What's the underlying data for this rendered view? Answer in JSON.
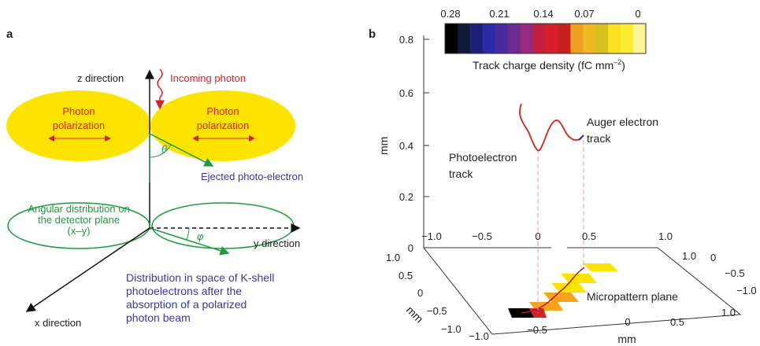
{
  "panel_a": {
    "letter": "a",
    "z_axis_label": "z direction",
    "incoming_label": "Incoming photon",
    "left_ellipse_lines": [
      "Photon",
      "polarization"
    ],
    "right_ellipse_lines": [
      "Photon",
      "polarization"
    ],
    "theta": "θ",
    "ejected_label": "Ejected photo-electron",
    "detector_lines": [
      "Angular distribution on",
      "the detector plane",
      "(x–y)"
    ],
    "phi": "φ",
    "y_axis_label": "y direction",
    "x_axis_label": "x direction",
    "caption_lines": [
      "Distribution in space of K-shell",
      "photoelectrons after the",
      "absorption of a polarized",
      "photon beam"
    ]
  },
  "panel_b": {
    "letter": "b",
    "colorbar": {
      "ticks": [
        "0.28",
        "0.21",
        "0.14",
        "0.07",
        "0"
      ],
      "colors": [
        "#000000",
        "#101838",
        "#1c2078",
        "#2a2aa8",
        "#4a2a9c",
        "#6e2a90",
        "#952a80",
        "#c0203c",
        "#d81c2c",
        "#c82020",
        "#f0a020",
        "#f0b820",
        "#d8c020",
        "#fae020",
        "#fcec30",
        "#fdf49a"
      ],
      "label_main": "Track charge density (fC mm",
      "label_sup": "–2",
      "label_end": ")"
    },
    "z_ticks": [
      "0",
      "0.2",
      "0.4",
      "0.6",
      "0.8"
    ],
    "z_unit": "mm",
    "photoelectron_lines": [
      "Photoelectron",
      "track"
    ],
    "auger_lines": [
      "Auger electron",
      "track"
    ],
    "plane_label": "Micropattern plane",
    "back_ticks": [
      "−1.0",
      "−0.5",
      "0",
      "0.5",
      "1.0"
    ],
    "right_ticks": [
      "1.0",
      "0",
      "−0.5",
      "−1.0"
    ],
    "left_ticks": [
      "1.0",
      "0.5",
      "0",
      "−0.5",
      "−1.0"
    ],
    "left_unit": "mm",
    "bottom_ticks": [
      "−1.0",
      "−0.5",
      "0",
      "0.5",
      "1.0"
    ],
    "bottom_unit": "mm"
  }
}
